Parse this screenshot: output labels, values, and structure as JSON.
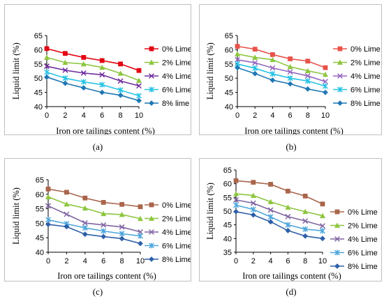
{
  "panels": [
    {
      "caption": "(a)",
      "chart_data": {
        "type": "line",
        "xlabel": "Iron ore tailings content (%)",
        "ylabel": "Liquid limit (%)",
        "x": [
          0,
          2,
          4,
          6,
          8,
          10
        ],
        "xticks": [
          "0",
          "2",
          "4",
          "6",
          "8",
          "10"
        ],
        "ylim": [
          40,
          65
        ],
        "yticks": [
          "40",
          "45",
          "50",
          "55",
          "60",
          "65"
        ],
        "legend_position": "right",
        "series": [
          {
            "name": "0% Lime",
            "color": "#e30613",
            "marker": "square",
            "values": [
              60.4,
              58.7,
              57.3,
              56.2,
              55.0,
              52.7
            ]
          },
          {
            "name": "2% Lime",
            "color": "#8dc63f",
            "marker": "triangle",
            "values": [
              57.3,
              55.5,
              55.0,
              53.8,
              51.7,
              49.2
            ]
          },
          {
            "name": "4% Lime",
            "color": "#7030a0",
            "marker": "x",
            "values": [
              54.2,
              52.8,
              51.8,
              51.2,
              49.0,
              47.3
            ]
          },
          {
            "name": "6% Lime",
            "color": "#29c3e6",
            "marker": "star",
            "values": [
              52.1,
              50.0,
              48.7,
              47.7,
              45.8,
              43.8
            ]
          },
          {
            "name": "8% lime",
            "color": "#1f77b4",
            "marker": "diamond",
            "values": [
              50.4,
              48.2,
              46.6,
              45.0,
              44.0,
              42.1
            ]
          }
        ]
      }
    },
    {
      "caption": "(b)",
      "chart_data": {
        "type": "line",
        "xlabel": "Iron ore tailings content (%)",
        "ylabel": "Liquid limit (%)",
        "x": [
          0,
          2,
          4,
          6,
          8,
          10
        ],
        "xticks": [
          "0",
          "2",
          "4",
          "6",
          "8",
          "10"
        ],
        "ylim": [
          40,
          65
        ],
        "yticks": [
          "40",
          "45",
          "50",
          "55",
          "60",
          "65"
        ],
        "legend_position": "right",
        "series": [
          {
            "name": "0% Lime",
            "color": "#e8534a",
            "marker": "square",
            "values": [
              61.2,
              60.2,
              58.3,
              56.8,
              56.0,
              53.7
            ]
          },
          {
            "name": "2% Lime",
            "color": "#8dc63f",
            "marker": "triangle",
            "values": [
              58.5,
              57.3,
              56.5,
              54.0,
              52.6,
              51.3
            ]
          },
          {
            "name": "4% Lime",
            "color": "#9467bd",
            "marker": "x",
            "values": [
              56.5,
              55.4,
              53.6,
              52.2,
              50.8,
              48.8
            ]
          },
          {
            "name": "6% Lime",
            "color": "#29c3e6",
            "marker": "star",
            "values": [
              55.0,
              53.5,
              51.5,
              50.0,
              49.0,
              47.2
            ]
          },
          {
            "name": "8% Lime",
            "color": "#1f77b4",
            "marker": "diamond",
            "values": [
              53.7,
              51.6,
              49.3,
              48.0,
              46.2,
              45.0
            ]
          }
        ]
      }
    },
    {
      "caption": "(c)",
      "chart_data": {
        "type": "line",
        "xlabel": "Iron ore tailings content (%)",
        "ylabel": "Liquid limit (%)",
        "x": [
          0,
          2,
          4,
          6,
          8,
          10
        ],
        "xticks": [
          "0",
          "2",
          "4",
          "6",
          "8",
          "10"
        ],
        "ylim": [
          40,
          65
        ],
        "yticks": [
          "40",
          "45",
          "50",
          "55",
          "60",
          "65"
        ],
        "legend_position": "right",
        "series": [
          {
            "name": "0% Lime",
            "color": "#a9654b",
            "marker": "square",
            "values": [
              61.8,
              60.7,
              58.7,
              57.2,
              56.5,
              55.7
            ]
          },
          {
            "name": "2% Lime",
            "color": "#8dc63f",
            "marker": "triangle",
            "values": [
              59.1,
              56.6,
              55.2,
              53.3,
              53.0,
              51.6
            ]
          },
          {
            "name": "4% Lime",
            "color": "#8064a2",
            "marker": "x",
            "values": [
              56.0,
              53.1,
              50.1,
              49.4,
              48.7,
              47.0
            ]
          },
          {
            "name": "6% Lime",
            "color": "#4ea6dc",
            "marker": "star",
            "values": [
              51.2,
              49.8,
              48.4,
              47.3,
              46.4,
              45.6
            ]
          },
          {
            "name": "8% Lime",
            "color": "#2e5fa8",
            "marker": "diamond",
            "values": [
              49.6,
              48.8,
              46.2,
              45.4,
              44.7,
              43.0
            ]
          }
        ]
      }
    },
    {
      "caption": "(d)",
      "chart_data": {
        "type": "line",
        "xlabel": "Iron ore tailings content (%)",
        "ylabel": "Liquid limit (%)",
        "x": [
          0,
          2,
          4,
          6,
          8,
          10
        ],
        "xticks": [
          "0",
          "2",
          "4",
          "6",
          "8",
          "10"
        ],
        "ylim": [
          35,
          65
        ],
        "yticks": [
          "35",
          "40",
          "45",
          "50",
          "55",
          "60",
          "65"
        ],
        "legend_position": "right",
        "series": [
          {
            "name": "0% Lime",
            "color": "#a9654b",
            "marker": "square",
            "values": [
              61.1,
              60.5,
              59.8,
              57.3,
              55.5,
              52.6
            ]
          },
          {
            "name": "2% Lime",
            "color": "#8dc63f",
            "marker": "triangle",
            "values": [
              56.3,
              55.7,
              53.4,
              51.4,
              49.8,
              48.3
            ]
          },
          {
            "name": "4% Lime",
            "color": "#8064a2",
            "marker": "x",
            "values": [
              54.1,
              52.9,
              50.4,
              48.0,
              46.4,
              44.6
            ]
          },
          {
            "name": "6% Lime",
            "color": "#4ea6dc",
            "marker": "star",
            "values": [
              52.2,
              50.6,
              47.9,
              45.0,
              43.4,
              42.8
            ]
          },
          {
            "name": "8% Lime",
            "color": "#2e5fa8",
            "marker": "diamond",
            "values": [
              49.8,
              48.6,
              46.1,
              42.9,
              40.9,
              40.0
            ]
          }
        ]
      }
    }
  ]
}
